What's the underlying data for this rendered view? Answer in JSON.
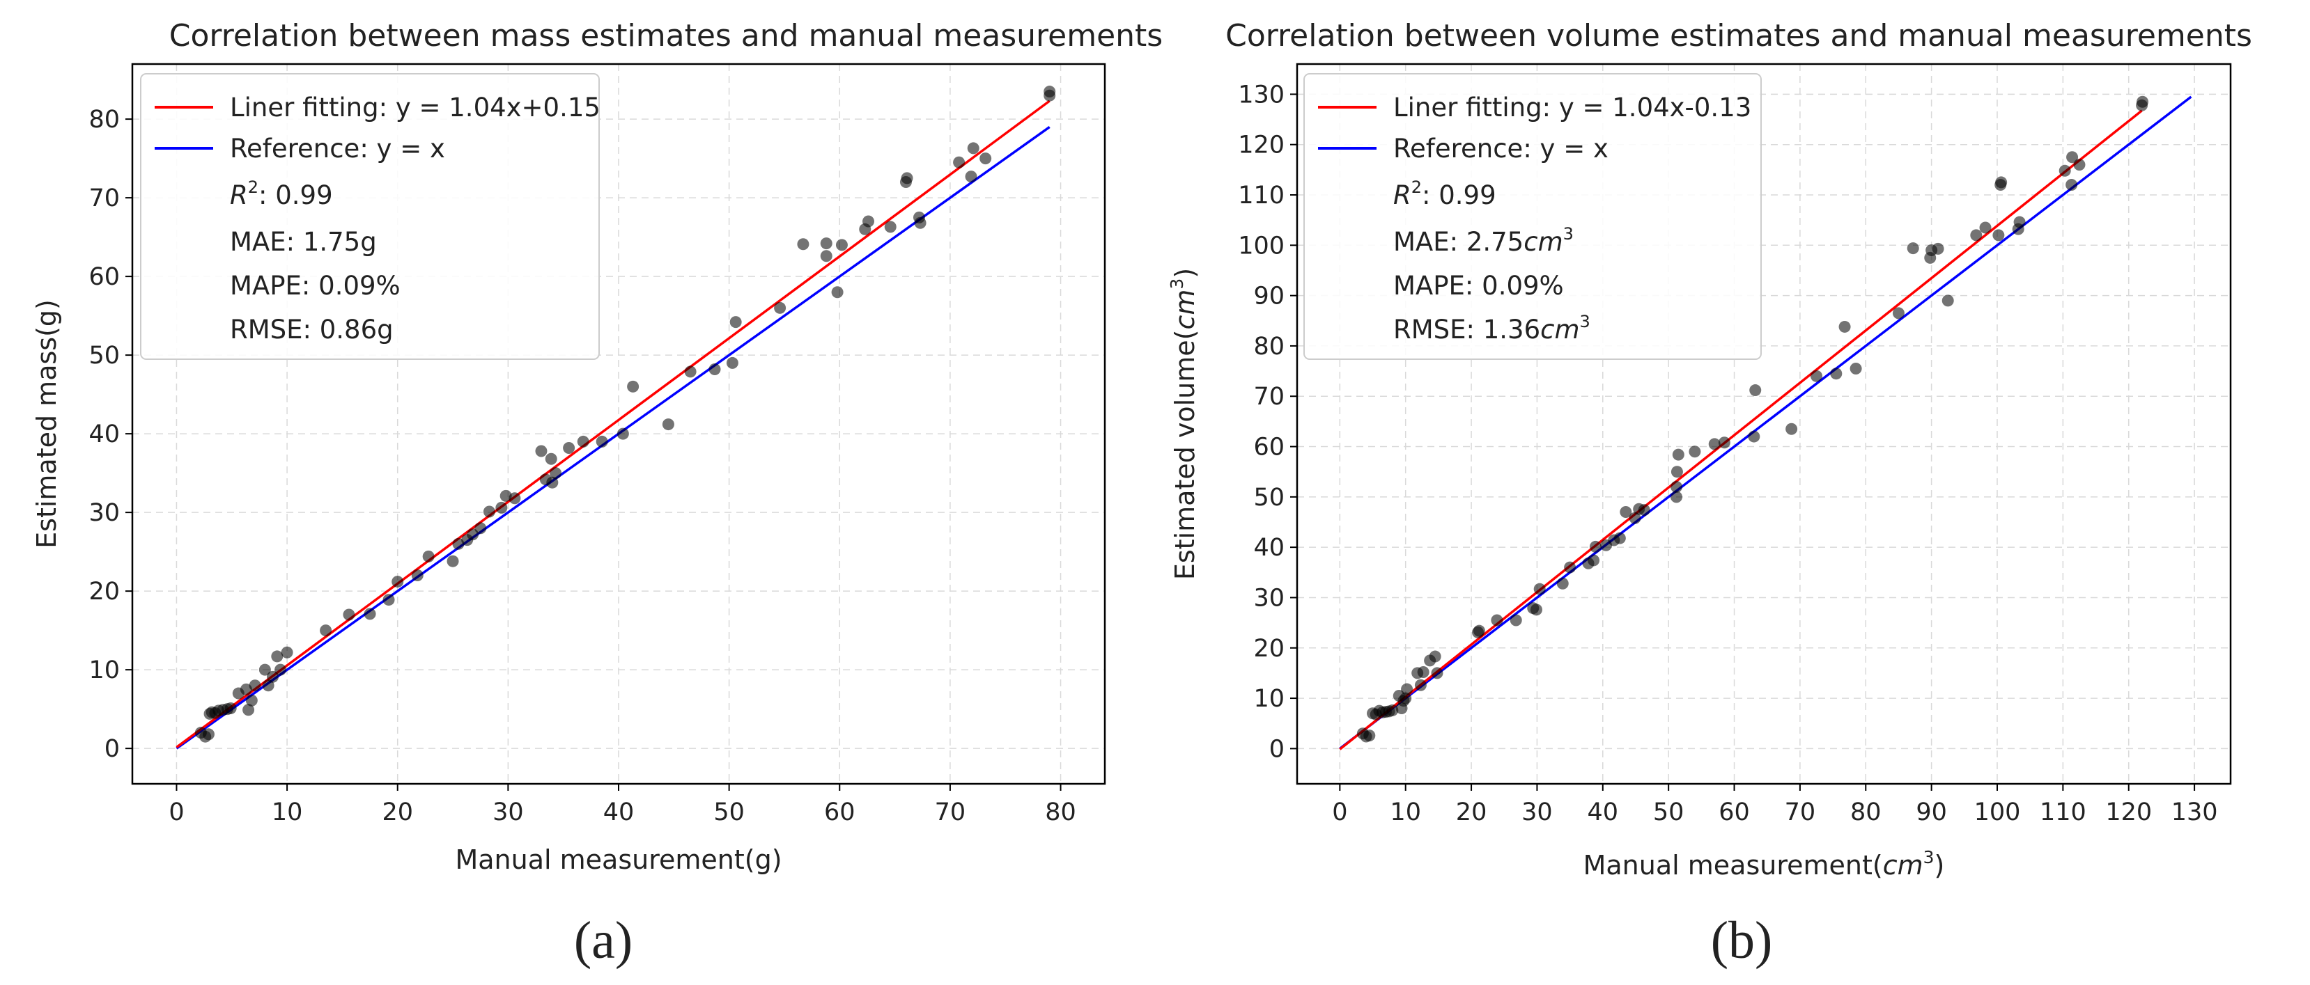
{
  "figure": {
    "caption_a": "(a)",
    "caption_b": "(b)"
  },
  "chart_data": [
    {
      "type": "scatter",
      "title": "Correlation between mass estimates and manual measurements",
      "xlabel": "Manual measurement(g)",
      "ylabel": "Estimated mass(g)",
      "xlim": [
        -4,
        84
      ],
      "ylim": [
        -4.5,
        87
      ],
      "xticks": [
        0,
        10,
        20,
        30,
        40,
        50,
        60,
        70,
        80
      ],
      "yticks": [
        0,
        10,
        20,
        30,
        40,
        50,
        60,
        70,
        80
      ],
      "grid": true,
      "legend_placement": "top-left",
      "fit_line": {
        "label": "Liner fitting: y = 1.04x+0.15",
        "slope": 1.04,
        "intercept": 0.15,
        "x_range": [
          0,
          79
        ],
        "color": "#ff0000"
      },
      "reference_line": {
        "label": "Reference: y = x",
        "x_range": [
          0,
          79
        ],
        "color": "#0000ff"
      },
      "stats": {
        "r2_symbol": "R",
        "r2_exp": "2",
        "r2_value": ": 0.99",
        "mae": "MAE: 1.75g",
        "mape": "MAPE: 0.09%",
        "rmse": "RMSE: 0.86g"
      },
      "points": [
        [
          2.2,
          2.0
        ],
        [
          2.6,
          1.5
        ],
        [
          2.9,
          1.8
        ],
        [
          3.0,
          4.4
        ],
        [
          3.2,
          4.6
        ],
        [
          3.5,
          4.5
        ],
        [
          3.8,
          4.8
        ],
        [
          4.2,
          4.9
        ],
        [
          4.6,
          5.0
        ],
        [
          4.9,
          5.1
        ],
        [
          5.6,
          7.0
        ],
        [
          6.3,
          7.5
        ],
        [
          6.5,
          4.9
        ],
        [
          6.8,
          6.1
        ],
        [
          7.1,
          8.0
        ],
        [
          8.0,
          10.0
        ],
        [
          8.3,
          8.0
        ],
        [
          8.7,
          9.1
        ],
        [
          9.1,
          11.7
        ],
        [
          9.4,
          10.0
        ],
        [
          10.0,
          12.2
        ],
        [
          13.5,
          15.0
        ],
        [
          15.6,
          17.0
        ],
        [
          17.5,
          17.1
        ],
        [
          19.2,
          18.9
        ],
        [
          20.0,
          21.2
        ],
        [
          21.8,
          22.0
        ],
        [
          22.8,
          24.4
        ],
        [
          25.0,
          23.8
        ],
        [
          25.5,
          26.0
        ],
        [
          26.3,
          26.5
        ],
        [
          26.8,
          27.2
        ],
        [
          27.5,
          28.0
        ],
        [
          28.3,
          30.1
        ],
        [
          29.4,
          30.6
        ],
        [
          29.8,
          32.1
        ],
        [
          30.6,
          31.8
        ],
        [
          33.0,
          37.8
        ],
        [
          33.4,
          34.2
        ],
        [
          33.9,
          36.8
        ],
        [
          34.0,
          33.8
        ],
        [
          34.3,
          35.0
        ],
        [
          35.5,
          38.2
        ],
        [
          36.8,
          39.0
        ],
        [
          38.5,
          39.0
        ],
        [
          40.4,
          40.0
        ],
        [
          41.3,
          46.0
        ],
        [
          44.5,
          41.2
        ],
        [
          46.5,
          47.9
        ],
        [
          48.7,
          48.2
        ],
        [
          50.3,
          49.0
        ],
        [
          50.6,
          54.2
        ],
        [
          54.6,
          56.0
        ],
        [
          56.7,
          64.1
        ],
        [
          58.8,
          62.6
        ],
        [
          58.8,
          64.2
        ],
        [
          59.8,
          58.0
        ],
        [
          60.2,
          64.0
        ],
        [
          62.3,
          66.0
        ],
        [
          62.6,
          67.0
        ],
        [
          64.6,
          66.3
        ],
        [
          66.0,
          72.0
        ],
        [
          66.1,
          72.5
        ],
        [
          67.2,
          67.5
        ],
        [
          67.3,
          66.8
        ],
        [
          70.8,
          74.5
        ],
        [
          71.9,
          72.7
        ],
        [
          72.1,
          76.3
        ],
        [
          73.2,
          75.0
        ],
        [
          79.0,
          83.0
        ],
        [
          79.0,
          83.5
        ]
      ]
    },
    {
      "type": "scatter",
      "title": "Correlation between volume estimates and manual measurements",
      "xlabel_prefix": "Manual measurement(",
      "xlabel_unit": "cm",
      "xlabel_exp": "3",
      "xlabel_suffix": ")",
      "ylabel_prefix": "Estimated volume(",
      "ylabel_unit": "cm",
      "ylabel_exp": "3",
      "ylabel_suffix": ")",
      "xlim": [
        -6.5,
        135.5
      ],
      "ylim": [
        -7,
        136
      ],
      "xticks": [
        0,
        10,
        20,
        30,
        40,
        50,
        60,
        70,
        80,
        90,
        100,
        110,
        120,
        130
      ],
      "yticks": [
        0,
        10,
        20,
        30,
        40,
        50,
        60,
        70,
        80,
        90,
        100,
        110,
        120,
        130
      ],
      "grid": true,
      "legend_placement": "top-left",
      "fit_line": {
        "label": "Liner fitting: y = 1.04x-0.13",
        "slope": 1.04,
        "intercept": -0.13,
        "x_range": [
          0,
          122
        ],
        "color": "#ff0000"
      },
      "reference_line": {
        "label": "Reference: y = x",
        "x_range": [
          0,
          129.5
        ],
        "color": "#0000ff"
      },
      "stats": {
        "r2_symbol": "R",
        "r2_exp": "2",
        "r2_value": ": 0.99",
        "mae_prefix": "MAE: 2.75",
        "mae_unit": "cm",
        "mae_exp": "3",
        "mape": "MAPE: 0.09%",
        "rmse_prefix": "RMSE: 1.36",
        "rmse_unit": "cm",
        "rmse_exp": "3"
      },
      "points": [
        [
          3.5,
          3.0
        ],
        [
          4.0,
          2.4
        ],
        [
          4.5,
          2.6
        ],
        [
          5.0,
          7.0
        ],
        [
          5.5,
          6.8
        ],
        [
          6.0,
          7.5
        ],
        [
          6.5,
          7.2
        ],
        [
          7.0,
          7.3
        ],
        [
          7.5,
          7.4
        ],
        [
          8.0,
          7.6
        ],
        [
          9.0,
          10.5
        ],
        [
          9.4,
          8.0
        ],
        [
          9.7,
          9.5
        ],
        [
          10.0,
          10.0
        ],
        [
          10.2,
          11.8
        ],
        [
          11.8,
          15.0
        ],
        [
          12.3,
          12.6
        ],
        [
          12.7,
          15.2
        ],
        [
          13.7,
          17.5
        ],
        [
          14.5,
          18.3
        ],
        [
          14.8,
          15.0
        ],
        [
          21.0,
          23.1
        ],
        [
          21.2,
          23.4
        ],
        [
          23.9,
          25.5
        ],
        [
          26.8,
          25.5
        ],
        [
          29.4,
          27.9
        ],
        [
          29.9,
          27.6
        ],
        [
          30.4,
          31.7
        ],
        [
          33.9,
          32.8
        ],
        [
          35.0,
          36.0
        ],
        [
          37.8,
          36.8
        ],
        [
          38.6,
          37.4
        ],
        [
          38.9,
          40.1
        ],
        [
          40.5,
          40.4
        ],
        [
          41.7,
          41.4
        ],
        [
          42.6,
          41.8
        ],
        [
          43.5,
          47.0
        ],
        [
          44.9,
          45.8
        ],
        [
          45.5,
          47.6
        ],
        [
          46.3,
          47.4
        ],
        [
          51.2,
          50.0
        ],
        [
          51.2,
          52.0
        ],
        [
          51.3,
          55.0
        ],
        [
          51.5,
          58.4
        ],
        [
          54.0,
          59.0
        ],
        [
          57.0,
          60.5
        ],
        [
          58.5,
          60.8
        ],
        [
          63.0,
          62.0
        ],
        [
          63.2,
          71.2
        ],
        [
          68.7,
          63.5
        ],
        [
          72.5,
          74.0
        ],
        [
          75.5,
          74.5
        ],
        [
          76.8,
          83.8
        ],
        [
          78.5,
          75.5
        ],
        [
          85.0,
          86.5
        ],
        [
          87.2,
          99.4
        ],
        [
          89.8,
          97.5
        ],
        [
          90.0,
          99.0
        ],
        [
          91.0,
          99.3
        ],
        [
          92.5,
          89.0
        ],
        [
          96.8,
          102.0
        ],
        [
          98.2,
          103.5
        ],
        [
          100.2,
          102.0
        ],
        [
          100.5,
          112.0
        ],
        [
          100.6,
          112.5
        ],
        [
          103.2,
          103.2
        ],
        [
          103.4,
          104.6
        ],
        [
          110.3,
          114.8
        ],
        [
          111.3,
          112.0
        ],
        [
          111.4,
          117.5
        ],
        [
          112.5,
          116.0
        ],
        [
          122.0,
          127.8
        ],
        [
          122.1,
          128.5
        ]
      ]
    }
  ]
}
